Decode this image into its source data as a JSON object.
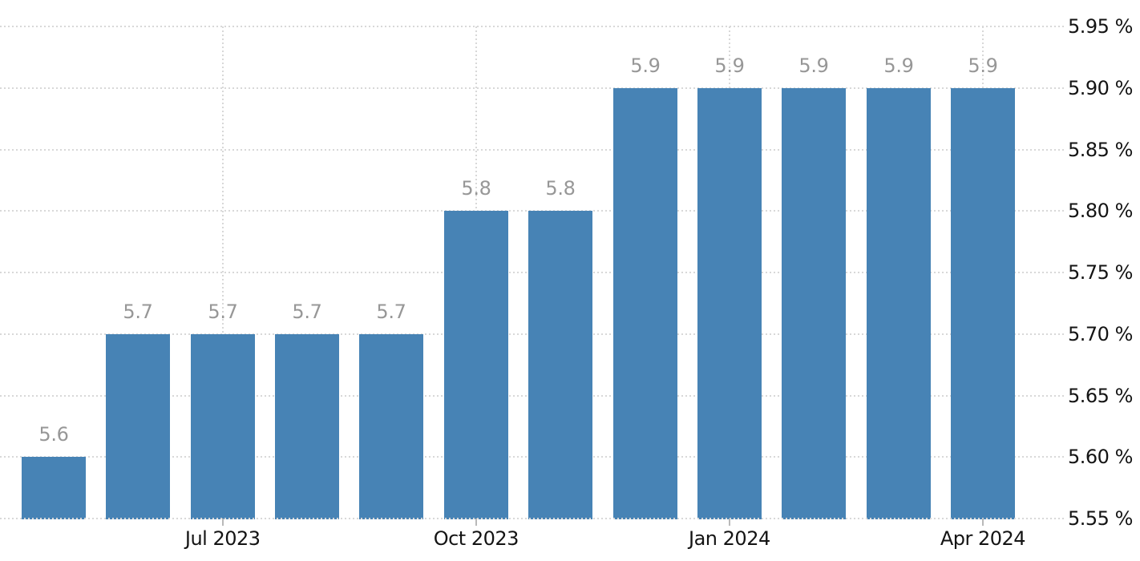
{
  "chart_data": {
    "type": "bar",
    "title": "",
    "unit": "%",
    "ylim": [
      5.55,
      5.95
    ],
    "grid": {
      "horizontal": "dotted",
      "vertical": "dotted"
    },
    "legend": "none",
    "y_axis_side": "right",
    "y_ticks": [
      {
        "value": 5.95,
        "label": "5.95 %"
      },
      {
        "value": 5.9,
        "label": "5.90 %"
      },
      {
        "value": 5.85,
        "label": "5.85 %"
      },
      {
        "value": 5.8,
        "label": "5.80 %"
      },
      {
        "value": 5.75,
        "label": "5.75 %"
      },
      {
        "value": 5.7,
        "label": "5.70 %"
      },
      {
        "value": 5.65,
        "label": "5.65 %"
      },
      {
        "value": 5.6,
        "label": "5.60 %"
      },
      {
        "value": 5.55,
        "label": "5.55 %"
      }
    ],
    "x_ticks": [
      {
        "bar_index": 2,
        "label": "Jul 2023"
      },
      {
        "bar_index": 5,
        "label": "Oct 2023"
      },
      {
        "bar_index": 8,
        "label": "Jan 2024"
      },
      {
        "bar_index": 11,
        "label": "Apr 2024"
      }
    ],
    "bars": [
      {
        "value": 5.6,
        "label": "5.6"
      },
      {
        "value": 5.7,
        "label": "5.7"
      },
      {
        "value": 5.7,
        "label": "5.7"
      },
      {
        "value": 5.7,
        "label": "5.7"
      },
      {
        "value": 5.7,
        "label": "5.7"
      },
      {
        "value": 5.8,
        "label": "5.8"
      },
      {
        "value": 5.8,
        "label": "5.8"
      },
      {
        "value": 5.9,
        "label": "5.9"
      },
      {
        "value": 5.9,
        "label": "5.9"
      },
      {
        "value": 5.9,
        "label": "5.9"
      },
      {
        "value": 5.9,
        "label": "5.9"
      },
      {
        "value": 5.9,
        "label": "5.9"
      }
    ],
    "colors": {
      "bar": "#4783b5",
      "value_label": "#979797",
      "axis_label": "#141414",
      "gridline": "#d8d8d8",
      "tick_mark": "#b9b9b9",
      "background": "#ffffff"
    }
  }
}
